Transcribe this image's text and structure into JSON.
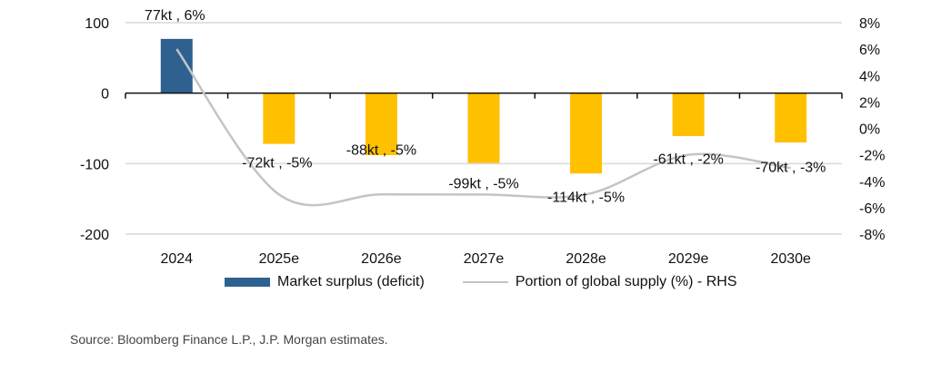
{
  "chart_data": {
    "type": "bar",
    "title": "",
    "categories": [
      "2024",
      "2025e",
      "2026e",
      "2027e",
      "2028e",
      "2029e",
      "2030e"
    ],
    "series": [
      {
        "name": "Market surplus (deficit)",
        "type": "bar",
        "axis": "left",
        "unit": "kt",
        "values": [
          77,
          -72,
          -88,
          -99,
          -114,
          -61,
          -70
        ],
        "colors": [
          "#2E6190",
          "#FFC000",
          "#FFC000",
          "#FFC000",
          "#FFC000",
          "#FFC000",
          "#FFC000"
        ]
      },
      {
        "name": "Portion of global supply (%) - RHS",
        "type": "line",
        "axis": "right",
        "unit": "%",
        "values": [
          6,
          -5,
          -5,
          -5,
          -5,
          -2,
          -3
        ],
        "color": "#C4C4C4",
        "smooth": true
      }
    ],
    "data_labels": [
      "77kt , 6%",
      "-72kt , -5%",
      "-88kt , -5%",
      "-99kt , -5%",
      "-114kt , -5%",
      "-61kt , -2%",
      "-70kt , -3%"
    ],
    "left_axis": {
      "ylim": [
        -200,
        100
      ],
      "ticks": [
        100,
        0,
        -100,
        -200
      ],
      "tick_labels": [
        "100",
        "0",
        "-100",
        "-200"
      ],
      "gridlines": [
        100,
        -100,
        -200
      ]
    },
    "right_axis": {
      "ylim": [
        -8,
        8
      ],
      "ticks": [
        8,
        6,
        4,
        2,
        0,
        -2,
        -4,
        -6,
        -8
      ],
      "tick_labels": [
        "8%",
        "6%",
        "4%",
        "2%",
        "0%",
        "-2%",
        "-4%",
        "-6%",
        "-8%"
      ]
    },
    "xlabel": "",
    "ylabel": "",
    "legend_position": "bottom",
    "grid": true
  },
  "legend": {
    "bar_label": "Market surplus (deficit)",
    "line_label": "Portion of global supply (%) - RHS"
  },
  "source": "Source: Bloomberg Finance L.P., J.P. Morgan estimates."
}
